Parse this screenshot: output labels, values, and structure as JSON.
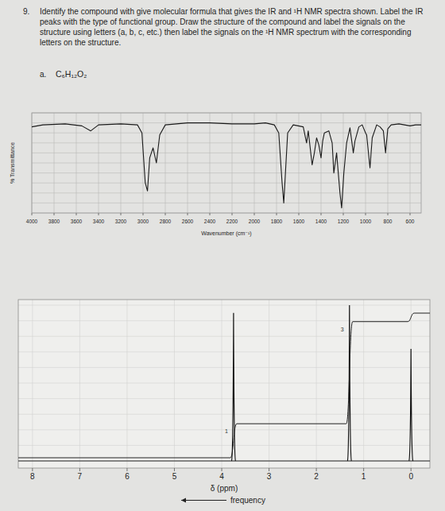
{
  "question": {
    "number": "9.",
    "text": "Identify the compound with give molecular formula that gives the IR and ¹H NMR spectra shown. Label the IR peaks with the type of functional group. Draw the structure of the compound and label the signals on the structure using letters (a, b, c, etc.) then label the signals on the ¹H NMR spectrum with the corresponding letters on the structure.",
    "part": "a.",
    "formula": "C₆H₁₂O₂"
  },
  "chart_data": [
    {
      "type": "line",
      "x_label": "Wavenumber (cm⁻¹)",
      "y_label": "% Transmittance",
      "x": [
        4000,
        3900,
        3700,
        3550,
        3470,
        3400,
        3200,
        3050,
        3010,
        2980,
        2960,
        2940,
        2910,
        2880,
        2850,
        2800,
        2600,
        2400,
        2200,
        2000,
        1900,
        1820,
        1780,
        1750,
        1735,
        1720,
        1700,
        1650,
        1560,
        1530,
        1515,
        1480,
        1460,
        1440,
        1420,
        1400,
        1385,
        1370,
        1330,
        1300,
        1285,
        1260,
        1230,
        1215,
        1195,
        1170,
        1140,
        1110,
        1095,
        1060,
        1030,
        1000,
        990,
        960,
        940,
        900,
        870,
        840,
        820,
        800,
        770,
        700,
        650,
        600,
        550,
        500
      ],
      "values": [
        86,
        88,
        89,
        87,
        82,
        88,
        89,
        88,
        80,
        30,
        22,
        55,
        65,
        50,
        78,
        88,
        90,
        90,
        89,
        89,
        90,
        88,
        80,
        30,
        10,
        40,
        80,
        88,
        86,
        70,
        82,
        48,
        60,
        75,
        68,
        55,
        72,
        80,
        82,
        70,
        40,
        60,
        20,
        5,
        40,
        70,
        85,
        60,
        72,
        86,
        88,
        80,
        78,
        45,
        75,
        88,
        86,
        82,
        60,
        84,
        88,
        89,
        88,
        87,
        88,
        88
      ],
      "xlim": [
        4000,
        500
      ],
      "ylim": [
        0,
        100
      ],
      "xticks": [
        4000,
        3800,
        3600,
        3400,
        3200,
        3000,
        2800,
        2600,
        2400,
        2200,
        2000,
        1800,
        1600,
        1400,
        1200,
        1000,
        800,
        600
      ],
      "yticks": [
        0,
        10,
        20,
        30,
        40,
        50,
        60,
        70,
        80,
        90,
        100
      ],
      "grid": true,
      "tick_labels": "x",
      "color": "#1a1a1a"
    },
    {
      "type": "stem",
      "x_label": "δ (ppm)",
      "annotation": "frequency",
      "x": [
        3.75,
        1.3,
        0
      ],
      "values": [
        95,
        100,
        72
      ],
      "integrals": [
        1,
        3,
        0.25
      ],
      "integral_labels": [
        "1",
        "3",
        null
      ],
      "xlim": [
        8.3,
        -0.4
      ],
      "ylim": [
        0,
        100
      ],
      "xticks": [
        8,
        7,
        6,
        5,
        4,
        3,
        2,
        1,
        0
      ],
      "yticks": [
        0,
        10,
        20,
        30,
        40,
        50,
        60,
        70,
        80,
        90,
        100
      ],
      "grid": true,
      "tick_labels": "x",
      "color": "#111111"
    }
  ]
}
